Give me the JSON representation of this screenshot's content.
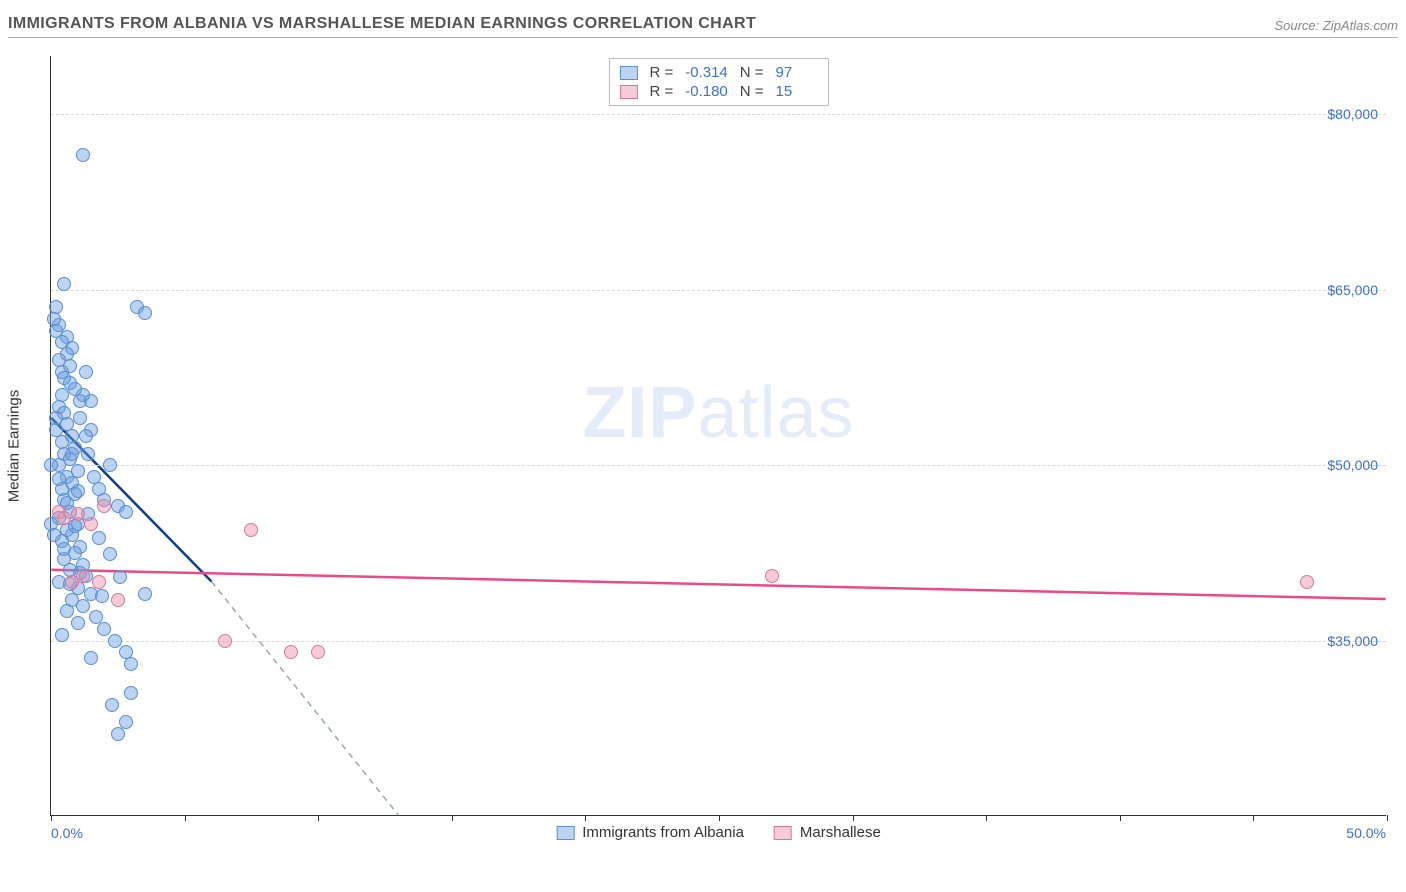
{
  "header": {
    "title": "IMMIGRANTS FROM ALBANIA VS MARSHALLESE MEDIAN EARNINGS CORRELATION CHART",
    "source": "Source: ZipAtlas.com"
  },
  "watermark": {
    "part1": "ZIP",
    "part2": "atlas"
  },
  "chart": {
    "type": "scatter",
    "ylabel": "Median Earnings",
    "xlim": [
      0,
      50
    ],
    "ylim": [
      20000,
      85000
    ],
    "xticks": [
      0,
      5,
      10,
      15,
      20,
      25,
      30,
      35,
      40,
      45,
      50
    ],
    "yticks": [
      35000,
      50000,
      65000,
      80000
    ],
    "ytick_labels": [
      "$35,000",
      "$50,000",
      "$65,000",
      "$80,000"
    ],
    "xlim_labels": {
      "min": "0.0%",
      "max": "50.0%"
    },
    "background_color": "#ffffff",
    "grid_color": "#d8d8d8",
    "axis_color": "#333333",
    "label_color": "#3b6fd6",
    "series": [
      {
        "name": "Immigrants from Albania",
        "fill": "rgba(106,158,224,0.45)",
        "stroke": "#5a8fd0",
        "trend_color": "#0b3e8f",
        "trend_dash_color": "#9aa5b5",
        "R": "-0.314",
        "N": "97",
        "trend": {
          "x1": 0,
          "y1": 54000,
          "x2": 6,
          "y2": 40000,
          "extend_x2": 13,
          "extend_y2": 20000
        },
        "points": [
          [
            0.2,
            63500
          ],
          [
            0.3,
            62000
          ],
          [
            0.5,
            65500
          ],
          [
            0.6,
            61000
          ],
          [
            0.8,
            60000
          ],
          [
            0.4,
            58000
          ],
          [
            0.7,
            57000
          ],
          [
            0.3,
            55000
          ],
          [
            0.5,
            54500
          ],
          [
            0.6,
            53500
          ],
          [
            0.2,
            53000
          ],
          [
            0.8,
            52500
          ],
          [
            0.4,
            52000
          ],
          [
            0.9,
            51500
          ],
          [
            0.5,
            51000
          ],
          [
            0.7,
            50500
          ],
          [
            0.3,
            50000
          ],
          [
            1.0,
            49500
          ],
          [
            0.6,
            49000
          ],
          [
            0.8,
            48500
          ],
          [
            0.4,
            48000
          ],
          [
            0.9,
            47500
          ],
          [
            0.5,
            47000
          ],
          [
            1.1,
            54000
          ],
          [
            0.7,
            46000
          ],
          [
            1.2,
            56000
          ],
          [
            0.3,
            45500
          ],
          [
            1.0,
            45000
          ],
          [
            0.6,
            44500
          ],
          [
            1.3,
            58000
          ],
          [
            0.8,
            44000
          ],
          [
            1.5,
            53000
          ],
          [
            0.4,
            43500
          ],
          [
            1.1,
            43000
          ],
          [
            0.9,
            42500
          ],
          [
            1.4,
            51000
          ],
          [
            0.5,
            42000
          ],
          [
            1.2,
            41500
          ],
          [
            1.6,
            49000
          ],
          [
            0.7,
            41000
          ],
          [
            1.3,
            40500
          ],
          [
            1.8,
            48000
          ],
          [
            0.3,
            40000
          ],
          [
            1.0,
            39500
          ],
          [
            2.0,
            47000
          ],
          [
            1.5,
            39000
          ],
          [
            0.8,
            38500
          ],
          [
            2.2,
            50000
          ],
          [
            1.2,
            38000
          ],
          [
            2.5,
            46500
          ],
          [
            0.6,
            37500
          ],
          [
            1.7,
            37000
          ],
          [
            2.8,
            46000
          ],
          [
            1.0,
            36500
          ],
          [
            3.2,
            63500
          ],
          [
            2.0,
            36000
          ],
          [
            3.5,
            63000
          ],
          [
            0.4,
            35500
          ],
          [
            2.4,
            35000
          ],
          [
            2.8,
            34000
          ],
          [
            1.5,
            33500
          ],
          [
            3.0,
            33000
          ],
          [
            3.5,
            39000
          ],
          [
            0.1,
            62500
          ],
          [
            0.2,
            61500
          ],
          [
            0.4,
            60500
          ],
          [
            0.6,
            59500
          ],
          [
            0.3,
            59000
          ],
          [
            0.7,
            58500
          ],
          [
            0.5,
            57500
          ],
          [
            0.9,
            56500
          ],
          [
            0.4,
            56000
          ],
          [
            1.1,
            55500
          ],
          [
            0.2,
            54000
          ],
          [
            1.3,
            52500
          ],
          [
            0.8,
            51000
          ],
          [
            1.5,
            55500
          ],
          [
            0.3,
            48800
          ],
          [
            1.0,
            47800
          ],
          [
            0.6,
            46800
          ],
          [
            1.4,
            45800
          ],
          [
            0.9,
            44800
          ],
          [
            1.8,
            43800
          ],
          [
            0.5,
            42800
          ],
          [
            2.2,
            42400
          ],
          [
            1.1,
            40800
          ],
          [
            2.6,
            40400
          ],
          [
            0.7,
            39800
          ],
          [
            1.9,
            38800
          ],
          [
            3.0,
            30500
          ],
          [
            2.3,
            29500
          ],
          [
            2.8,
            28000
          ],
          [
            2.5,
            27000
          ],
          [
            1.2,
            76500
          ],
          [
            0.0,
            45000
          ],
          [
            0.1,
            44000
          ],
          [
            0.0,
            50000
          ]
        ]
      },
      {
        "name": "Marshallese",
        "fill": "rgba(236,140,170,0.45)",
        "stroke": "#d67a9c",
        "trend_color": "#e94b8a",
        "R": "-0.180",
        "N": "15",
        "trend": {
          "x1": 0,
          "y1": 41000,
          "x2": 50,
          "y2": 38500
        },
        "points": [
          [
            0.3,
            46000
          ],
          [
            0.5,
            45500
          ],
          [
            1.0,
            45800
          ],
          [
            1.5,
            45000
          ],
          [
            2.0,
            46500
          ],
          [
            0.8,
            40000
          ],
          [
            1.2,
            40500
          ],
          [
            1.8,
            40000
          ],
          [
            2.5,
            38500
          ],
          [
            6.5,
            35000
          ],
          [
            7.5,
            44500
          ],
          [
            9.0,
            34000
          ],
          [
            10.0,
            34000
          ],
          [
            27.0,
            40500
          ],
          [
            47.0,
            40000
          ]
        ]
      }
    ]
  }
}
